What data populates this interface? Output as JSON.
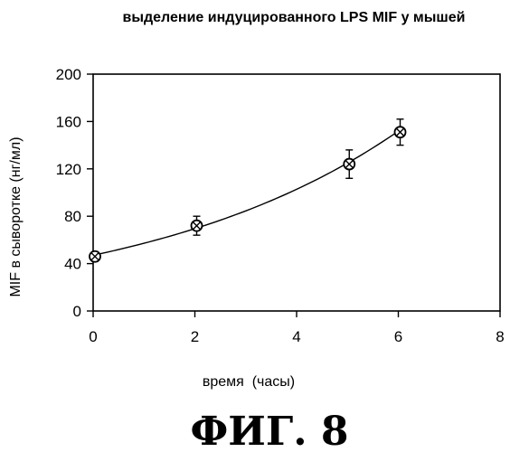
{
  "chart_data": {
    "type": "scatter",
    "title": "выделение индуцированного LPS MIF у мышей",
    "xlabel": "время  (часы)",
    "ylabel": "MIF в сыворотке (нг/мл)",
    "xlim": [
      0,
      8
    ],
    "ylim": [
      0,
      200
    ],
    "xticks": [
      0,
      2,
      4,
      6,
      8
    ],
    "yticks": [
      0,
      40,
      80,
      120,
      160,
      200
    ],
    "grid": false,
    "series": [
      {
        "x": [
          0,
          2,
          5,
          6
        ],
        "y": [
          46,
          72,
          124,
          151
        ],
        "err": [
          4,
          8,
          12,
          11
        ]
      }
    ],
    "fit_curve": true
  },
  "caption": "ФИГ. 8"
}
